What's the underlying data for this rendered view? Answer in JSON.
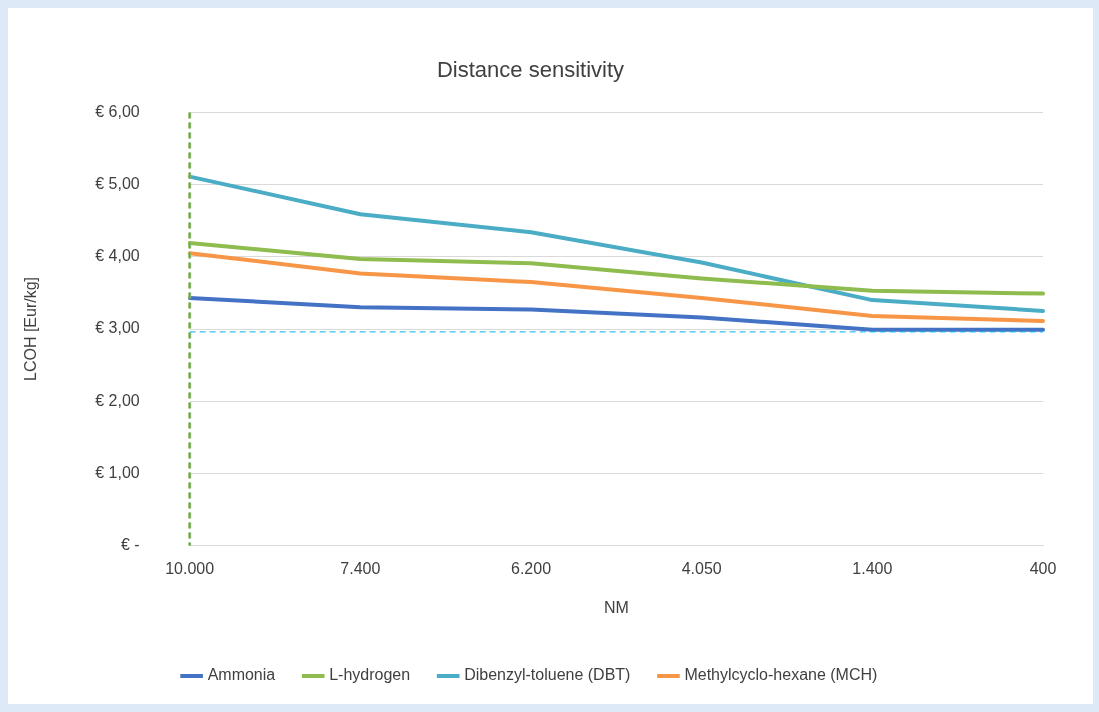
{
  "chart_data": {
    "type": "line",
    "title": "Distance sensitivity",
    "xlabel": "NM",
    "ylabel": "LCOH [Eur/kg]",
    "categories": [
      "10.000",
      "7.400",
      "6.200",
      "4.050",
      "1.400",
      "400"
    ],
    "series": [
      {
        "name": "Ammonia",
        "color": "#4472c4",
        "values": [
          3.43,
          3.3,
          3.27,
          3.16,
          2.99,
          2.99
        ]
      },
      {
        "name": "L-hydrogen",
        "color": "#8fbc4f",
        "values": [
          4.19,
          3.97,
          3.91,
          3.7,
          3.53,
          3.49
        ]
      },
      {
        "name": "Dibenzyl-toluene (DBT)",
        "color": "#4bacc6",
        "values": [
          5.11,
          4.59,
          4.34,
          3.92,
          3.4,
          3.25
        ]
      },
      {
        "name": "Methylcyclo-hexane (MCH)",
        "color": "#f79646",
        "values": [
          4.05,
          3.77,
          3.65,
          3.43,
          3.18,
          3.11
        ]
      }
    ],
    "ylim": [
      0,
      6
    ],
    "yticks": [
      {
        "value": 0,
        "label": "€ -"
      },
      {
        "value": 1,
        "label": "€ 1,00"
      },
      {
        "value": 2,
        "label": "€ 2,00"
      },
      {
        "value": 3,
        "label": "€ 3,00"
      },
      {
        "value": 4,
        "label": "€ 4,00"
      },
      {
        "value": 5,
        "label": "€ 5,00"
      },
      {
        "value": 6,
        "label": "€ 6,00"
      }
    ],
    "ref_lines": [
      {
        "axis": "x",
        "value": "10.000",
        "color": "#9bbb59",
        "line_style": "dashed"
      },
      {
        "axis": "x",
        "value": "10.000",
        "color": "#00b0f0",
        "line_style": "dashed"
      },
      {
        "axis": "y",
        "value": 2.96,
        "color": "#00b0f0",
        "line_style": "dashed"
      }
    ],
    "grid": "y",
    "legend": "bottom",
    "marker": "none",
    "line_style": "solid"
  }
}
